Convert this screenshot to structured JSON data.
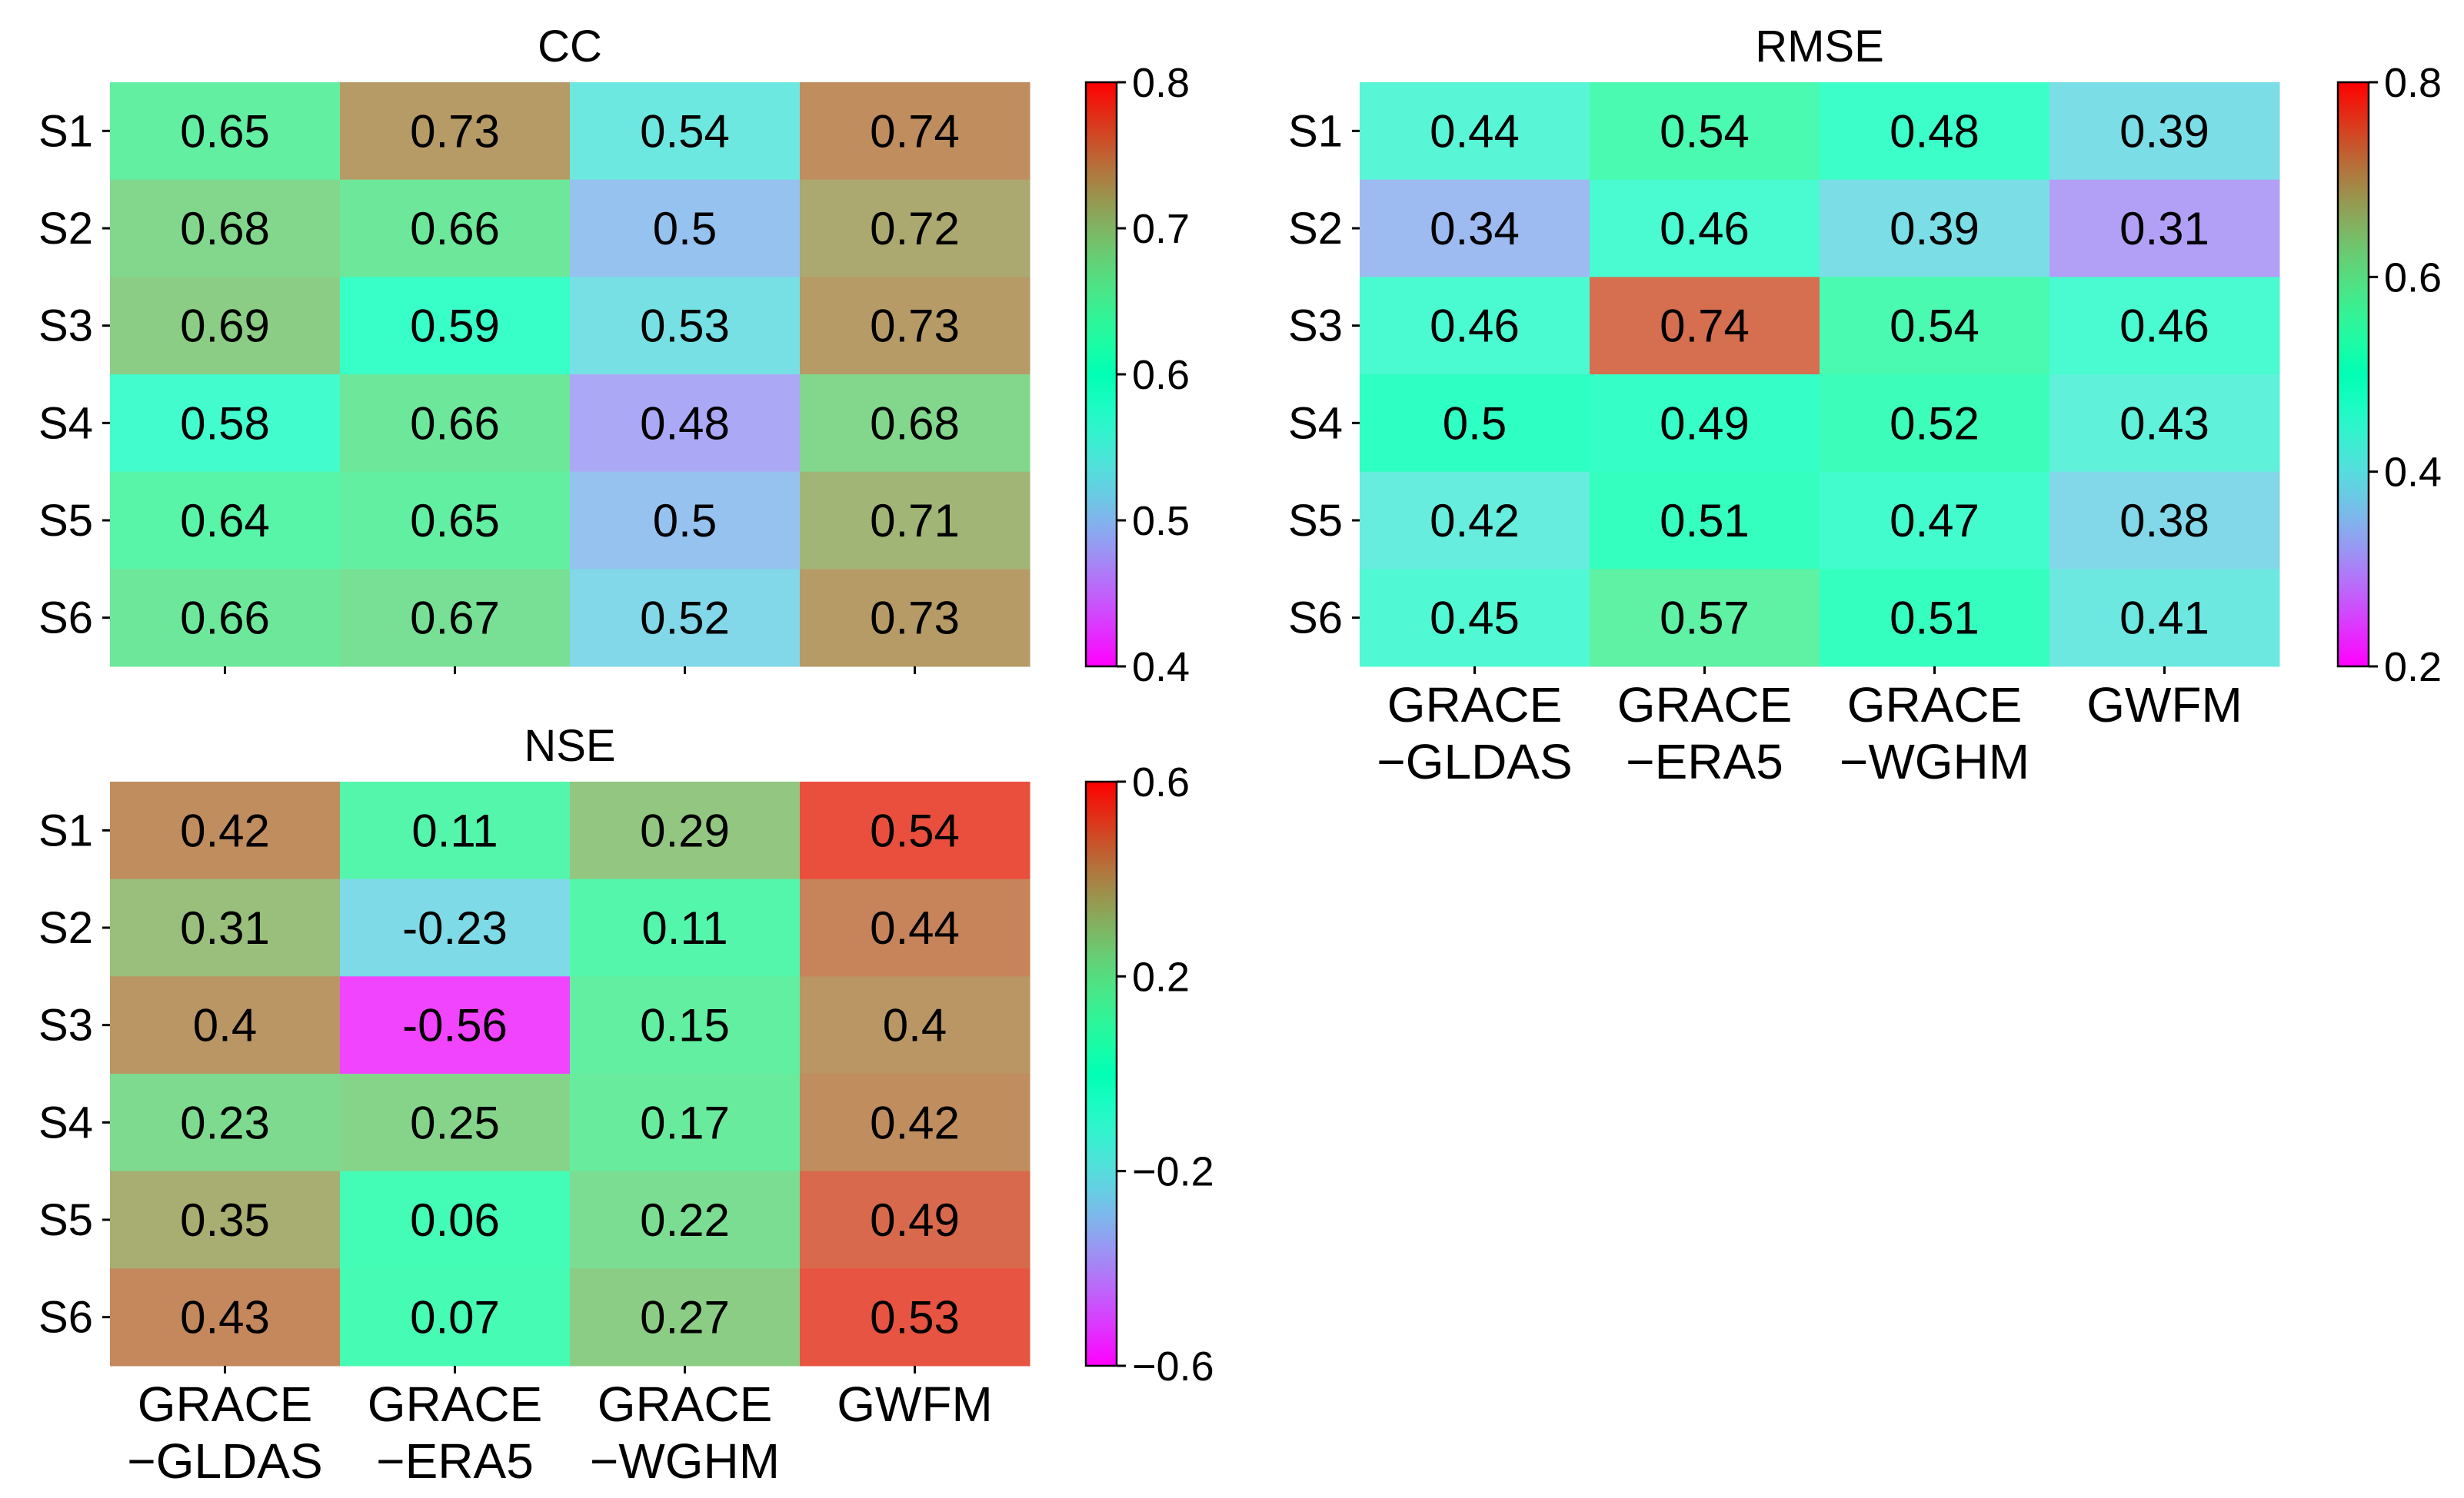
{
  "chart_data": [
    {
      "type": "heatmap",
      "title": "CC",
      "rows": [
        "S1",
        "S2",
        "S3",
        "S4",
        "S5",
        "S6"
      ],
      "columns": [
        "GRACE\n−GLDAS",
        "GRACE\n−ERA5",
        "GRACE\n−WGHM",
        "GWFM"
      ],
      "show_column_labels": false,
      "values": [
        [
          0.65,
          0.73,
          0.54,
          0.74
        ],
        [
          0.68,
          0.66,
          0.5,
          0.72
        ],
        [
          0.69,
          0.59,
          0.53,
          0.73
        ],
        [
          0.58,
          0.66,
          0.48,
          0.68
        ],
        [
          0.64,
          0.65,
          0.5,
          0.71
        ],
        [
          0.66,
          0.67,
          0.52,
          0.73
        ]
      ],
      "labels": [
        [
          "0.65",
          "0.73",
          "0.54",
          "0.74"
        ],
        [
          "0.68",
          "0.66",
          "0.5",
          "0.72"
        ],
        [
          "0.69",
          "0.59",
          "0.53",
          "0.73"
        ],
        [
          "0.58",
          "0.66",
          "0.48",
          "0.68"
        ],
        [
          "0.64",
          "0.65",
          "0.5",
          "0.71"
        ],
        [
          "0.66",
          "0.67",
          "0.52",
          "0.73"
        ]
      ],
      "colorbar": {
        "vmin": 0.4,
        "vmax": 0.8,
        "colormap": "rainbow",
        "ticks": [
          0.4,
          0.5,
          0.6,
          0.7,
          0.8
        ],
        "tick_labels": [
          "0.4",
          "0.5",
          "0.6",
          "0.7",
          "0.8"
        ]
      }
    },
    {
      "type": "heatmap",
      "title": "RMSE",
      "rows": [
        "S1",
        "S2",
        "S3",
        "S4",
        "S5",
        "S6"
      ],
      "columns": [
        "GRACE\n−GLDAS",
        "GRACE\n−ERA5",
        "GRACE\n−WGHM",
        "GWFM"
      ],
      "show_column_labels": true,
      "values": [
        [
          0.44,
          0.54,
          0.48,
          0.39
        ],
        [
          0.34,
          0.46,
          0.39,
          0.31
        ],
        [
          0.46,
          0.74,
          0.54,
          0.46
        ],
        [
          0.5,
          0.49,
          0.52,
          0.43
        ],
        [
          0.42,
          0.51,
          0.47,
          0.38
        ],
        [
          0.45,
          0.57,
          0.51,
          0.41
        ]
      ],
      "labels": [
        [
          "0.44",
          "0.54",
          "0.48",
          "0.39"
        ],
        [
          "0.34",
          "0.46",
          "0.39",
          "0.31"
        ],
        [
          "0.46",
          "0.74",
          "0.54",
          "0.46"
        ],
        [
          "0.5",
          "0.49",
          "0.52",
          "0.43"
        ],
        [
          "0.42",
          "0.51",
          "0.47",
          "0.38"
        ],
        [
          "0.45",
          "0.57",
          "0.51",
          "0.41"
        ]
      ],
      "colorbar": {
        "vmin": 0.2,
        "vmax": 0.8,
        "colormap": "rainbow",
        "ticks": [
          0.2,
          0.4,
          0.6,
          0.8
        ],
        "tick_labels": [
          "0.2",
          "0.4",
          "0.6",
          "0.8"
        ]
      }
    },
    {
      "type": "heatmap",
      "title": "NSE",
      "rows": [
        "S1",
        "S2",
        "S3",
        "S4",
        "S5",
        "S6"
      ],
      "columns": [
        "GRACE\n−GLDAS",
        "GRACE\n−ERA5",
        "GRACE\n−WGHM",
        "GWFM"
      ],
      "show_column_labels": true,
      "values": [
        [
          0.42,
          0.11,
          0.29,
          0.54
        ],
        [
          0.31,
          -0.23,
          0.11,
          0.44
        ],
        [
          0.4,
          -0.56,
          0.15,
          0.4
        ],
        [
          0.23,
          0.25,
          0.17,
          0.42
        ],
        [
          0.35,
          0.06,
          0.22,
          0.49
        ],
        [
          0.43,
          0.07,
          0.27,
          0.53
        ]
      ],
      "labels": [
        [
          "0.42",
          "0.11",
          "0.29",
          "0.54"
        ],
        [
          "0.31",
          "-0.23",
          "0.11",
          "0.44"
        ],
        [
          "0.4",
          "-0.56",
          "0.15",
          "0.4"
        ],
        [
          "0.23",
          "0.25",
          "0.17",
          "0.42"
        ],
        [
          "0.35",
          "0.06",
          "0.22",
          "0.49"
        ],
        [
          "0.43",
          "0.07",
          "0.27",
          "0.53"
        ]
      ],
      "colorbar": {
        "vmin": -0.6,
        "vmax": 0.6,
        "colormap": "rainbow",
        "ticks": [
          -0.6,
          -0.2,
          0.2,
          0.6
        ],
        "tick_labels": [
          "−0.6",
          "−0.2",
          "0.2",
          "0.6"
        ]
      }
    }
  ]
}
